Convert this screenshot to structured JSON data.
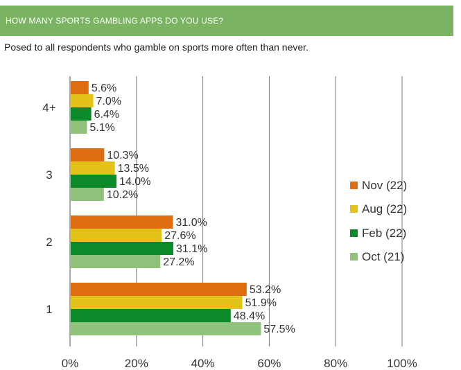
{
  "header": {
    "title": "HOW MANY SPORTS GAMBLING APPS DO YOU USE?"
  },
  "subtitle": "Posed to all respondents who gamble on sports more often than never.",
  "colors": {
    "header_bg": "#7ab362",
    "gridline": "#777777"
  },
  "chart_data": {
    "type": "bar",
    "orientation": "horizontal",
    "categories": [
      "4+",
      "3",
      "2",
      "1"
    ],
    "series": [
      {
        "name": "Nov (22)",
        "color": "#e06c10",
        "values": [
          5.6,
          10.3,
          31.0,
          53.2
        ],
        "labels": [
          "5.6%",
          "10.3%",
          "31.0%",
          "53.2%"
        ]
      },
      {
        "name": "Aug (22)",
        "color": "#e3c21a",
        "values": [
          7.0,
          13.5,
          27.6,
          51.9
        ],
        "labels": [
          "7.0%",
          "13.5%",
          "27.6%",
          "51.9%"
        ]
      },
      {
        "name": "Feb (22)",
        "color": "#0c8a2a",
        "values": [
          6.4,
          14.0,
          31.1,
          48.4
        ],
        "labels": [
          "6.4%",
          "14.0%",
          "31.1%",
          "48.4%"
        ]
      },
      {
        "name": "Oct (21)",
        "color": "#8fc27a",
        "values": [
          5.1,
          10.2,
          27.2,
          57.5
        ],
        "labels": [
          "5.1%",
          "10.2%",
          "27.2%",
          "57.5%"
        ]
      }
    ],
    "xlim": [
      0,
      100
    ],
    "xticks": [
      0,
      20,
      40,
      60,
      80,
      100
    ],
    "xtick_labels": [
      "0%",
      "20%",
      "40%",
      "60%",
      "80%",
      "100%"
    ],
    "grid": true,
    "legend": "right"
  }
}
